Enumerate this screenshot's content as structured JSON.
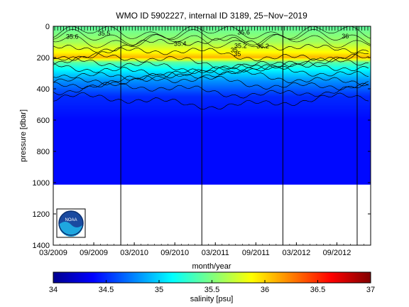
{
  "chart_data": {
    "type": "heatmap",
    "title": "WMO ID 5902227, internal ID 3189, 25−Nov−2019",
    "xlabel": "month/year",
    "ylabel": "pressure [dbar]",
    "x_tick_labels": [
      "03/2009",
      "09/2009",
      "03/2010",
      "09/2010",
      "03/2011",
      "09/2011",
      "03/2012",
      "09/2012"
    ],
    "x_range": [
      "2009-03",
      "2013-02"
    ],
    "y_ticks": [
      0,
      200,
      400,
      600,
      800,
      1000,
      1200,
      1400
    ],
    "ylim": [
      0,
      1400
    ],
    "y_reversed": true,
    "profile_max_pressure_dbar": 1010,
    "vertical_lines": [
      "2010-01",
      "2011-01",
      "2012-01",
      "2012-12"
    ],
    "colorbar": {
      "label": "salinity [psu]",
      "ticks": [
        34,
        34.5,
        35,
        35.5,
        36,
        36.5,
        37
      ],
      "range": [
        34,
        37
      ],
      "colormap": "jet"
    },
    "contour_labels": [
      "35.5",
      "35.6",
      "35.6",
      "36",
      "36.2",
      "35",
      "35.2",
      "35.4",
      "35"
    ],
    "depth_structure": [
      {
        "pressure_dbar": 0,
        "salinity": 35.4
      },
      {
        "pressure_dbar": 100,
        "salinity": 35.6
      },
      {
        "pressure_dbar": 170,
        "salinity": 35.9
      },
      {
        "pressure_dbar": 200,
        "salinity": 36.1
      },
      {
        "pressure_dbar": 230,
        "salinity": 35.4
      },
      {
        "pressure_dbar": 280,
        "salinity": 35.1
      },
      {
        "pressure_dbar": 350,
        "salinity": 34.8
      },
      {
        "pressure_dbar": 450,
        "salinity": 34.5
      },
      {
        "pressure_dbar": 600,
        "salinity": 34.4
      },
      {
        "pressure_dbar": 1000,
        "salinity": 34.4
      }
    ],
    "logo": "NOAA"
  }
}
